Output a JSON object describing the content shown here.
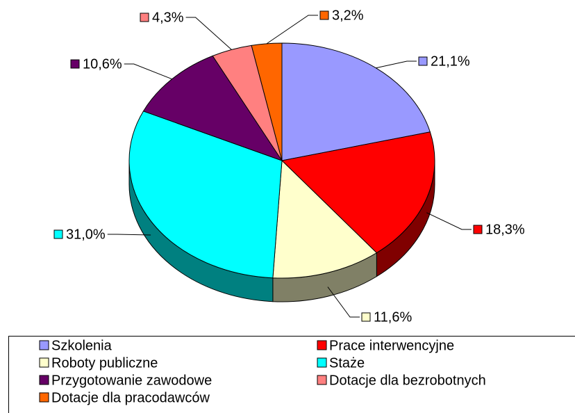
{
  "chart_data": {
    "type": "pie",
    "legend": "bottom",
    "categories": [
      "Szkolenia",
      "Prace interwencyjne",
      "Roboty publiczne",
      "Staże",
      "Przygotowanie zawodowe",
      "Dotacje dla bezrobotnych",
      "Dotacje dla pracodawców"
    ],
    "values": [
      21.1,
      18.3,
      11.6,
      31.0,
      10.6,
      4.3,
      3.2
    ],
    "value_labels": [
      "21,1%",
      "18,3%",
      "11,6%",
      "31,0%",
      "10,6%",
      "4,3%",
      "3,2%"
    ],
    "colors": [
      "#9999ff",
      "#ff0000",
      "#ffffcc",
      "#00ffff",
      "#660066",
      "#ff8080",
      "#ff6600"
    ]
  }
}
